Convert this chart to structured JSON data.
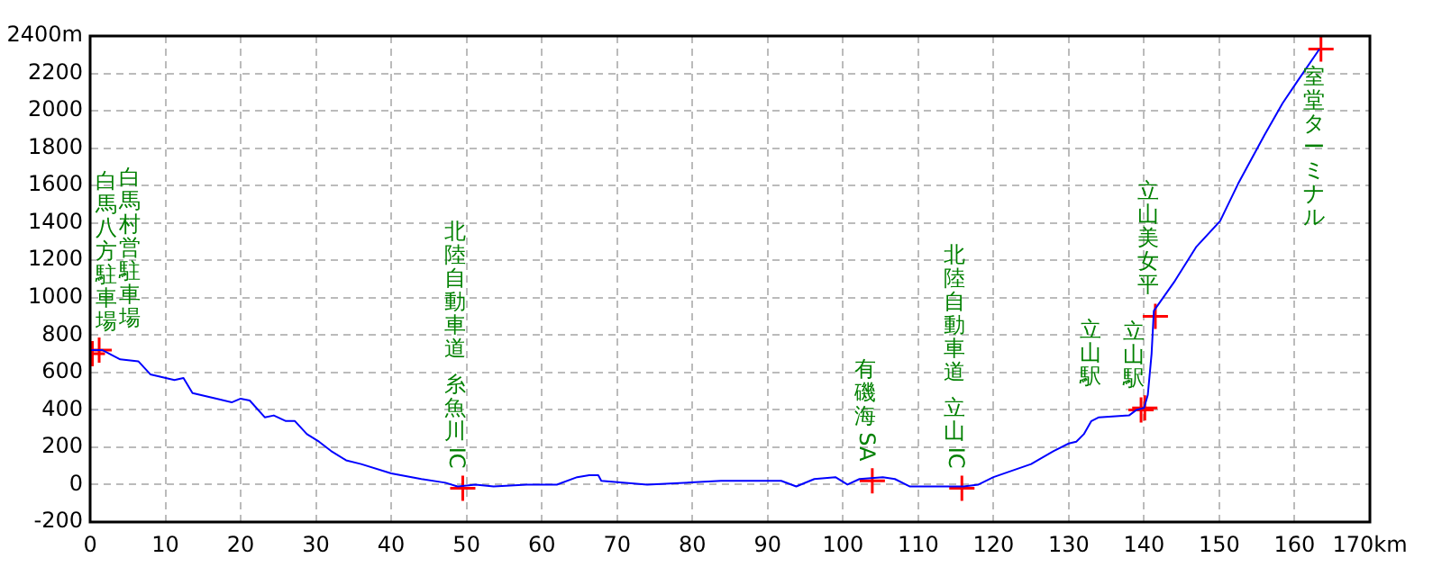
{
  "chart_data": {
    "type": "line",
    "xlim": [
      0,
      170
    ],
    "ylim": [
      -200,
      2400
    ],
    "xticks": [
      0,
      10,
      20,
      30,
      40,
      50,
      60,
      70,
      80,
      90,
      100,
      110,
      120,
      130,
      140,
      150,
      160,
      {
        "value": 170,
        "label": "170km"
      }
    ],
    "yticks": [
      -200,
      0,
      200,
      400,
      600,
      800,
      1000,
      1200,
      1400,
      1600,
      1800,
      2000,
      2200,
      {
        "value": 2400,
        "label": "2400m"
      }
    ],
    "grid": true,
    "line_style": "solid",
    "legend": false,
    "series": [
      {
        "type": "line",
        "color": "#0000ff",
        "marker": "none",
        "x": [
          0,
          1.6,
          4,
          6.4,
          8,
          11.2,
          12.4,
          13.6,
          16.8,
          18.8,
          20,
          21.2,
          23.2,
          24.4,
          26,
          27.2,
          28.8,
          30.4,
          32,
          34,
          36,
          40,
          44,
          47.2,
          48.8,
          51.2,
          53.6,
          58,
          62,
          64.7,
          66.3,
          67.5,
          67.9,
          74,
          83.8,
          91.8,
          93.8,
          96.2,
          99,
          100.6,
          102.2,
          105.3,
          106.9,
          108.9,
          114,
          116,
          118,
          120,
          125,
          128,
          130,
          131,
          132,
          133,
          134,
          138,
          139,
          140,
          140.5,
          141,
          141.3,
          144.1,
          146.9,
          150.1,
          152.5,
          156,
          158.4,
          160.4,
          163.3
        ],
        "values": [
          720,
          720,
          670,
          660,
          590,
          560,
          570,
          490,
          460,
          440,
          460,
          450,
          360,
          370,
          340,
          340,
          270,
          230,
          180,
          130,
          110,
          60,
          30,
          10,
          -10,
          0,
          -10,
          0,
          0,
          40,
          50,
          50,
          20,
          0,
          20,
          20,
          -10,
          30,
          40,
          0,
          30,
          40,
          30,
          -10,
          -10,
          -10,
          0,
          40,
          110,
          180,
          220,
          230,
          270,
          340,
          360,
          370,
          400,
          410,
          480,
          700,
          930,
          1090,
          1270,
          1410,
          1610,
          1870,
          2040,
          2160,
          2330
        ]
      },
      {
        "type": "scatter",
        "color": "#ff0000",
        "marker": "cross",
        "x": [
          0.3,
          1.2,
          49.5,
          103.9,
          115.8,
          139.6,
          140.1,
          141.5,
          163.5
        ],
        "values": [
          700,
          720,
          -20,
          20,
          -20,
          400,
          410,
          900,
          2330
        ]
      }
    ],
    "annotations": [
      {
        "text": "白馬八方駐車場",
        "x": 0.3,
        "y": 700
      },
      {
        "text": "白馬村営駐車場",
        "x": 1.2,
        "y": 720
      },
      "北陸自動車道",
      {
        "text": "糸魚川IC",
        "x": 49.5,
        "y": -20
      },
      {
        "text": "有磯海SA",
        "x": 103.9,
        "y": 20
      },
      "北陸自動車道",
      {
        "text": "立山IC",
        "x": 115.8,
        "y": -20
      },
      {
        "text": "立山駅",
        "x": 139.6,
        "y": 400
      },
      {
        "text": "立山駅",
        "x": 140.1,
        "y": 410
      },
      {
        "text": "立山美女平",
        "x": 141.5,
        "y": 900
      },
      {
        "text": "室堂ターミナル",
        "x": 163.5,
        "y": 2330
      }
    ]
  }
}
